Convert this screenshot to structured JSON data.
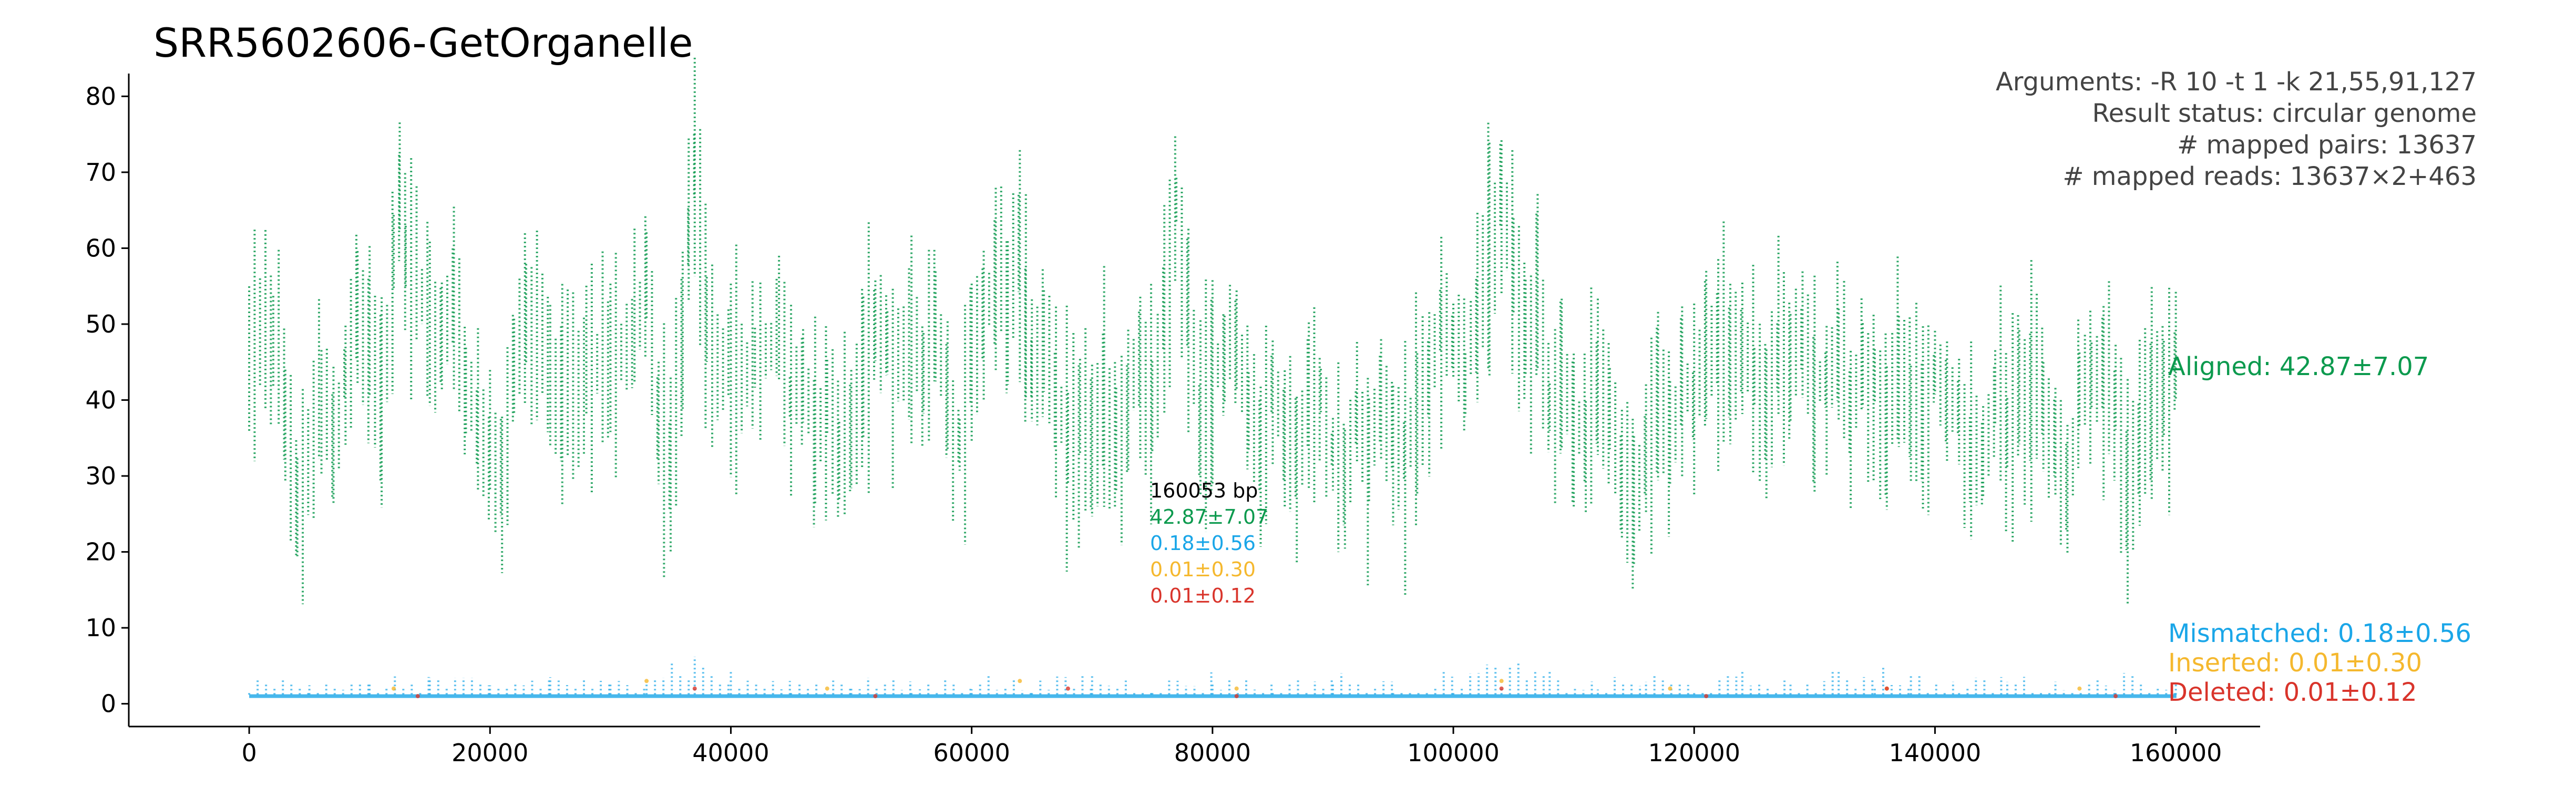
{
  "chart_data": {
    "type": "scatter",
    "title": "SRR5602606-GetOrganelle",
    "xlabel": "",
    "ylabel": "",
    "xlim": [
      -10000,
      167000
    ],
    "ylim": [
      -3,
      83
    ],
    "x_ticks": [
      0,
      20000,
      40000,
      60000,
      80000,
      100000,
      120000,
      140000,
      160000
    ],
    "y_ticks": [
      0,
      10,
      20,
      30,
      40,
      50,
      60,
      70,
      80
    ],
    "x_tick_labels": [
      "0",
      "20000",
      "40000",
      "60000",
      "80000",
      "100000",
      "120000",
      "140000",
      "160000"
    ],
    "y_tick_labels": [
      "0",
      "10",
      "20",
      "30",
      "40",
      "50",
      "60",
      "70",
      "80"
    ],
    "grid": false,
    "x_max": 160053,
    "info": {
      "arguments": "Arguments: -R 10 -t 1 -k 21,55,91,127",
      "status": "Result status: circular genome",
      "pairs": "# mapped pairs: 13637",
      "reads": "# mapped reads: 13637×2+463"
    },
    "summary": {
      "length": "160053 bp",
      "aligned": "42.87±7.07",
      "mismatched": "0.18±0.56",
      "inserted": "0.01±0.30",
      "deleted": "0.01±0.12"
    },
    "series": [
      {
        "name": "Aligned",
        "legend": "Aligned: 42.87±7.07",
        "color": "#0c9a4e",
        "points": [
          [
            0,
            48
          ],
          [
            2000,
            50
          ],
          [
            3000,
            39
          ],
          [
            4000,
            27
          ],
          [
            6000,
            42
          ],
          [
            7000,
            34
          ],
          [
            8000,
            45
          ],
          [
            9000,
            52
          ],
          [
            10000,
            48
          ],
          [
            11000,
            38
          ],
          [
            12000,
            58
          ],
          [
            12500,
            68
          ],
          [
            13000,
            60
          ],
          [
            15000,
            52
          ],
          [
            16000,
            48
          ],
          [
            17000,
            56
          ],
          [
            18000,
            44
          ],
          [
            19000,
            38
          ],
          [
            20000,
            34
          ],
          [
            21000,
            30
          ],
          [
            22000,
            46
          ],
          [
            23000,
            52
          ],
          [
            25000,
            47
          ],
          [
            26000,
            40
          ],
          [
            28000,
            47
          ],
          [
            30000,
            44
          ],
          [
            32000,
            50
          ],
          [
            33000,
            56
          ],
          [
            34000,
            36
          ],
          [
            35000,
            33
          ],
          [
            36000,
            48
          ],
          [
            36500,
            64
          ],
          [
            37000,
            74
          ],
          [
            38000,
            50
          ],
          [
            40000,
            45
          ],
          [
            42000,
            46
          ],
          [
            44000,
            48
          ],
          [
            45000,
            40
          ],
          [
            46000,
            44
          ],
          [
            47000,
            36
          ],
          [
            48000,
            42
          ],
          [
            49000,
            33
          ],
          [
            50000,
            38
          ],
          [
            51000,
            44
          ],
          [
            52000,
            50
          ],
          [
            53000,
            47
          ],
          [
            55000,
            48
          ],
          [
            56000,
            43
          ],
          [
            57000,
            50
          ],
          [
            58000,
            40
          ],
          [
            59000,
            35
          ],
          [
            60000,
            46
          ],
          [
            61000,
            51
          ],
          [
            62000,
            57
          ],
          [
            63000,
            55
          ],
          [
            64000,
            60
          ],
          [
            64500,
            52
          ],
          [
            65000,
            44
          ],
          [
            66000,
            48
          ],
          [
            67000,
            42
          ],
          [
            68000,
            35
          ],
          [
            69000,
            40
          ],
          [
            70000,
            33
          ],
          [
            71000,
            42
          ],
          [
            72000,
            36
          ],
          [
            73000,
            40
          ],
          [
            74000,
            48
          ],
          [
            75000,
            40
          ],
          [
            76000,
            52
          ],
          [
            77000,
            67
          ],
          [
            78000,
            52
          ],
          [
            79000,
            38
          ],
          [
            80000,
            44
          ],
          [
            81000,
            48
          ],
          [
            82000,
            46
          ],
          [
            83000,
            40
          ],
          [
            84000,
            35
          ],
          [
            85000,
            42
          ],
          [
            86000,
            33
          ],
          [
            87000,
            32
          ],
          [
            88000,
            40
          ],
          [
            89000,
            42
          ],
          [
            90000,
            33
          ],
          [
            91000,
            30
          ],
          [
            92000,
            39
          ],
          [
            93000,
            33
          ],
          [
            94000,
            42
          ],
          [
            95000,
            36
          ],
          [
            96000,
            33
          ],
          [
            97000,
            40
          ],
          [
            98000,
            44
          ],
          [
            99000,
            50
          ],
          [
            100000,
            48
          ],
          [
            101000,
            43
          ],
          [
            102000,
            52
          ],
          [
            103000,
            60
          ],
          [
            104000,
            68
          ],
          [
            105000,
            58
          ],
          [
            106000,
            48
          ],
          [
            107000,
            52
          ],
          [
            108000,
            40
          ],
          [
            109000,
            44
          ],
          [
            110000,
            38
          ],
          [
            111000,
            36
          ],
          [
            112000,
            44
          ],
          [
            113000,
            38
          ],
          [
            114000,
            30
          ],
          [
            115000,
            28
          ],
          [
            116000,
            33
          ],
          [
            117000,
            40
          ],
          [
            118000,
            36
          ],
          [
            119000,
            42
          ],
          [
            120000,
            40
          ],
          [
            121000,
            45
          ],
          [
            122000,
            50
          ],
          [
            123000,
            44
          ],
          [
            124000,
            48
          ],
          [
            125000,
            43
          ],
          [
            126000,
            40
          ],
          [
            127000,
            46
          ],
          [
            128000,
            44
          ],
          [
            129000,
            48
          ],
          [
            130000,
            42
          ],
          [
            131000,
            44
          ],
          [
            132000,
            47
          ],
          [
            133000,
            40
          ],
          [
            134000,
            45
          ],
          [
            135000,
            43
          ],
          [
            136000,
            40
          ],
          [
            137000,
            44
          ],
          [
            138000,
            41
          ],
          [
            139000,
            38
          ],
          [
            140000,
            44
          ],
          [
            141000,
            40
          ],
          [
            142000,
            38
          ],
          [
            143000,
            35
          ],
          [
            144000,
            33
          ],
          [
            145000,
            40
          ],
          [
            146000,
            38
          ],
          [
            147000,
            42
          ],
          [
            148000,
            44
          ],
          [
            149000,
            40
          ],
          [
            150000,
            34
          ],
          [
            151000,
            30
          ],
          [
            152000,
            40
          ],
          [
            153000,
            42
          ],
          [
            154000,
            45
          ],
          [
            155000,
            40
          ],
          [
            156000,
            28
          ],
          [
            157000,
            36
          ],
          [
            158000,
            42
          ],
          [
            159000,
            40
          ],
          [
            160000,
            45
          ]
        ]
      },
      {
        "name": "Mismatched",
        "legend": "Mismatched: 0.18±0.56",
        "color": "#1aa6e8",
        "baseline": 1,
        "points": [
          [
            0,
            2
          ],
          [
            5000,
            3
          ],
          [
            10000,
            2
          ],
          [
            15000,
            3
          ],
          [
            20000,
            2
          ],
          [
            25000,
            3
          ],
          [
            30000,
            2
          ],
          [
            33000,
            4
          ],
          [
            37000,
            5
          ],
          [
            40000,
            3
          ],
          [
            45000,
            2
          ],
          [
            50000,
            3
          ],
          [
            55000,
            2
          ],
          [
            60000,
            3
          ],
          [
            65000,
            2
          ],
          [
            70000,
            3
          ],
          [
            75000,
            2
          ],
          [
            80000,
            3
          ],
          [
            85000,
            2
          ],
          [
            90000,
            3
          ],
          [
            95000,
            2
          ],
          [
            100000,
            3
          ],
          [
            104000,
            4
          ],
          [
            108000,
            3
          ],
          [
            112000,
            2
          ],
          [
            116000,
            3
          ],
          [
            120000,
            2
          ],
          [
            124000,
            3
          ],
          [
            128000,
            2
          ],
          [
            132000,
            3
          ],
          [
            135000,
            4
          ],
          [
            138000,
            3
          ],
          [
            142000,
            2
          ],
          [
            146000,
            3
          ],
          [
            150000,
            2
          ],
          [
            155000,
            3
          ],
          [
            160000,
            2
          ]
        ]
      },
      {
        "name": "Inserted",
        "legend": "Inserted: 0.01±0.30",
        "color": "#f5b82e",
        "points": [
          [
            12000,
            2
          ],
          [
            33000,
            3
          ],
          [
            48000,
            2
          ],
          [
            64000,
            3
          ],
          [
            82000,
            2
          ],
          [
            104000,
            3
          ],
          [
            118000,
            2
          ],
          [
            136000,
            2
          ],
          [
            152000,
            2
          ]
        ]
      },
      {
        "name": "Deleted",
        "legend": "Deleted: 0.01±0.12",
        "color": "#d9342b",
        "points": [
          [
            14000,
            1
          ],
          [
            37000,
            2
          ],
          [
            52000,
            1
          ],
          [
            68000,
            2
          ],
          [
            82000,
            1
          ],
          [
            104000,
            2
          ],
          [
            121000,
            1
          ],
          [
            136000,
            2
          ],
          [
            155000,
            1
          ]
        ]
      }
    ]
  }
}
